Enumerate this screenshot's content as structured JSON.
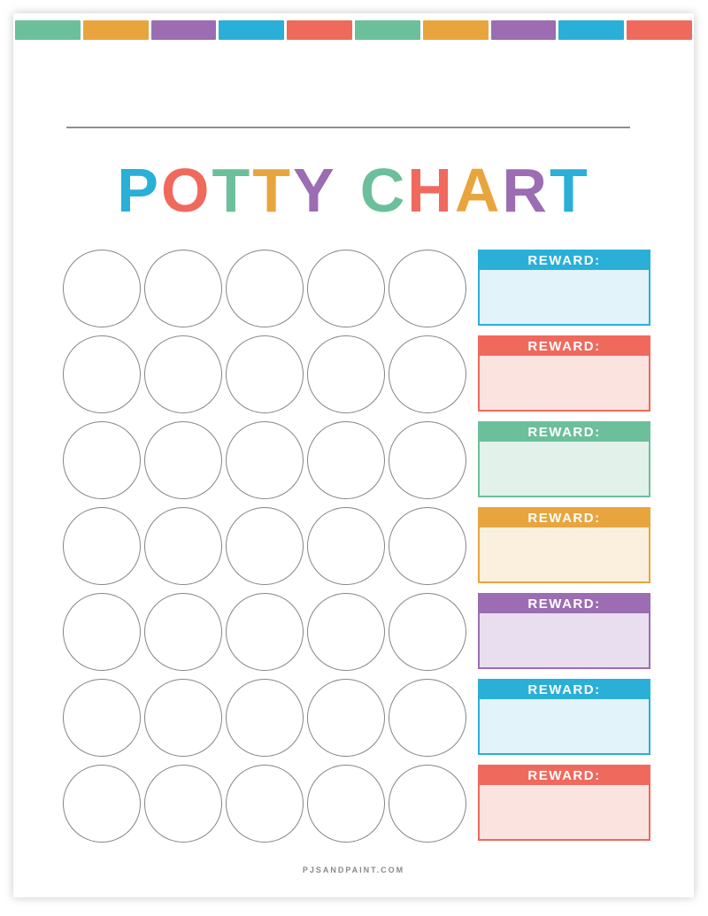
{
  "palette": {
    "green": "#6CBF9B",
    "gold": "#E8A53E",
    "purple": "#9C6DB2",
    "blue": "#29AFD8",
    "coral": "#F0695D"
  },
  "top_bar": {
    "segments": [
      "green",
      "gold",
      "purple",
      "blue",
      "coral",
      "green",
      "gold",
      "purple",
      "blue",
      "coral"
    ]
  },
  "title": {
    "text": "POTTY CHART",
    "letters": [
      {
        "char": "P",
        "color": "blue"
      },
      {
        "char": "O",
        "color": "coral"
      },
      {
        "char": "T",
        "color": "green"
      },
      {
        "char": "T",
        "color": "gold"
      },
      {
        "char": "Y",
        "color": "purple"
      },
      {
        "char": " ",
        "color": ""
      },
      {
        "char": "C",
        "color": "green"
      },
      {
        "char": "H",
        "color": "coral"
      },
      {
        "char": "A",
        "color": "gold"
      },
      {
        "char": "R",
        "color": "purple"
      },
      {
        "char": "T",
        "color": "blue"
      }
    ]
  },
  "sticker_grid": {
    "rows": 7,
    "columns": 5
  },
  "reward_boxes": [
    {
      "label": "REWARD:",
      "header_color": "#29AFD8",
      "body_color": "#E2F3F9"
    },
    {
      "label": "REWARD:",
      "header_color": "#F0695D",
      "body_color": "#FBE3DF"
    },
    {
      "label": "REWARD:",
      "header_color": "#6CBF9B",
      "body_color": "#E2F2EA"
    },
    {
      "label": "REWARD:",
      "header_color": "#E8A53E",
      "body_color": "#FAF0DD"
    },
    {
      "label": "REWARD:",
      "header_color": "#9C6DB2",
      "body_color": "#E9DEF0"
    },
    {
      "label": "REWARD:",
      "header_color": "#29AFD8",
      "body_color": "#E2F3F9"
    },
    {
      "label": "REWARD:",
      "header_color": "#F0695D",
      "body_color": "#FBE3DF"
    }
  ],
  "reward_box_vertical_step": 97,
  "footer": {
    "text": "PJSANDPAINT.COM"
  }
}
